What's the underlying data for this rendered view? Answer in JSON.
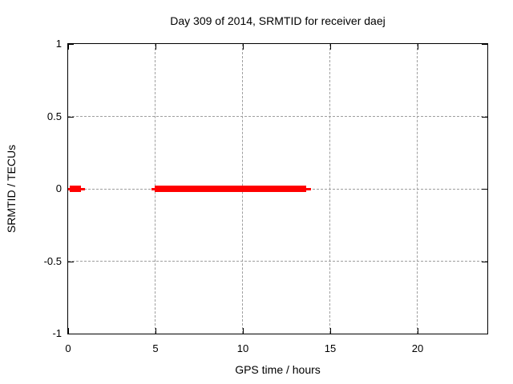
{
  "chart_data": {
    "type": "line",
    "title": "Day 309 of 2014, SRMTID for receiver daej",
    "xlabel": "GPS time / hours",
    "ylabel": "SRMTID / TECUs",
    "xlim": [
      0,
      24
    ],
    "ylim": [
      -1,
      1
    ],
    "x_ticks": [
      0,
      5,
      10,
      15,
      20
    ],
    "x_tick_labels": [
      "0",
      "5",
      "10",
      "15",
      "20"
    ],
    "y_ticks": [
      1,
      0.5,
      0,
      -0.5,
      -1
    ],
    "y_tick_labels": [
      "1",
      "0.5",
      "0",
      "-0.5",
      "-1"
    ],
    "grid_x": [
      5,
      10,
      15,
      20
    ],
    "grid_y": [
      0.5,
      0,
      -0.5
    ],
    "grid": true,
    "legend_position": "none",
    "series": [
      {
        "name": "SRMTID",
        "color": "#ff0000",
        "style": "thick horizontal segments with thin whisker extensions, plotted at y = 0",
        "segments": [
          {
            "y": 0,
            "bar_start": 0.1,
            "bar_end": 0.73,
            "line_start": 0.0,
            "line_end": 0.95
          },
          {
            "y": 0,
            "bar_start": 4.95,
            "bar_end": 13.65,
            "line_start": 4.75,
            "line_end": 13.9
          }
        ]
      }
    ],
    "colors": {
      "data": "#ff0000",
      "grid": "#9e9e9e",
      "axis": "#000000",
      "background": "#ffffff"
    }
  }
}
